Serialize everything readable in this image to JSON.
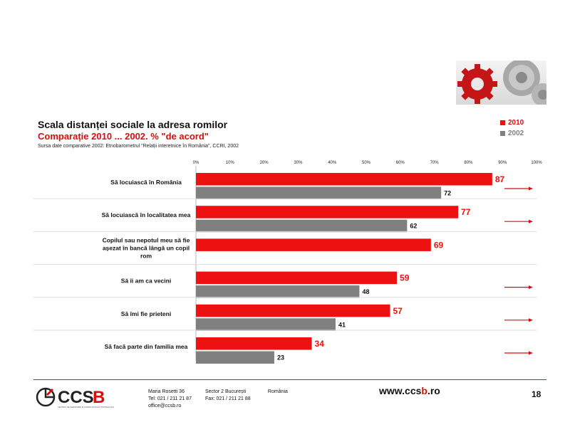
{
  "header": {
    "title": "Scala distanței sociale la adresa romilor",
    "subtitle": "Comparație 2010 ... 2002. % \"de acord\"",
    "source": "Sursa date comparative 2002: Etnobarometrul \"Relații interetnice în România\", CCRI, 2002"
  },
  "colors": {
    "series_2010": "#ee1111",
    "series_2002": "#808080",
    "accent": "#d80e0e"
  },
  "chart_data": {
    "type": "bar",
    "orientation": "horizontal",
    "categories": [
      [
        "Să locuiască în România"
      ],
      [
        "Să locuiască în localitatea mea"
      ],
      [
        "Copilul sau nepotul meu să fie",
        "așezat în bancă lângă un copil",
        "rom"
      ],
      [
        "Să îi am ca vecini"
      ],
      [
        "Să îmi fie prieteni"
      ],
      [
        "Să facă parte din familia mea"
      ]
    ],
    "series": [
      {
        "name": "2010",
        "values": [
          87,
          77,
          69,
          59,
          57,
          34
        ]
      },
      {
        "name": "2002",
        "values": [
          72,
          62,
          null,
          48,
          41,
          23
        ]
      }
    ],
    "xlim": [
      0,
      100
    ],
    "xticks": [
      "0%",
      "10%",
      "20%",
      "30%",
      "40%",
      "50%",
      "60%",
      "70%",
      "80%",
      "90%",
      "100%"
    ],
    "legend_position": "top-right",
    "trend_arrows": [
      true,
      true,
      false,
      true,
      true,
      true
    ],
    "grid": false
  },
  "footer": {
    "logo_text": "CCSB",
    "logo_tagline": "CENTRUL DE CERCETARE ȘI CONSULTANȚĂ ÎN ȘTIINȚELE SOCIALE",
    "address_street": "Maria Rosetti 36",
    "address_sector": "Sector 2  București",
    "address_country": "România",
    "phone": "Tel: 021 / 211 21 87",
    "fax": "Fax: 021 / 211 21 88",
    "email": "office@ccsb.ro",
    "website_prefix": "www.ccs",
    "website_accent": "b",
    "website_suffix": ".ro",
    "page_number": "18"
  }
}
